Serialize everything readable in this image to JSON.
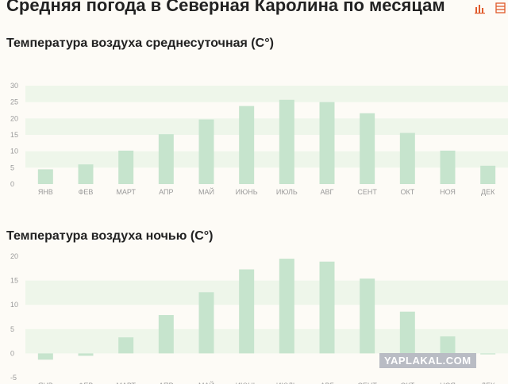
{
  "page": {
    "title": "Средняя погода в Северная Каролина по месяцам"
  },
  "toolbar": {
    "chart_icon": "bar-chart-icon",
    "menu_icon": "menu-icon"
  },
  "watermark": "YAPLAKAL.COM",
  "colors": {
    "bar": "#c6e4cd",
    "band": "#eef6ea",
    "background": "#fdfbf6",
    "accent": "#e05a2b"
  },
  "chart_data": [
    {
      "type": "bar",
      "title": "Температура воздуха среднесуточная (C°)",
      "categories": [
        "ЯНВ",
        "ФЕВ",
        "МАРТ",
        "АПР",
        "МАЙ",
        "ИЮНЬ",
        "ИЮЛЬ",
        "АВГ",
        "СЕНТ",
        "ОКТ",
        "НОЯ",
        "ДЕК"
      ],
      "values": [
        4.5,
        6,
        10.2,
        15.2,
        19.7,
        23.8,
        25.7,
        25,
        21.6,
        15.6,
        10.2,
        5.6
      ],
      "yticks": [
        0,
        5,
        10,
        15,
        20,
        25,
        30
      ],
      "ylim": [
        0,
        30
      ],
      "xlabel": "",
      "ylabel": "",
      "grid": "alternating-bands",
      "legend": "none"
    },
    {
      "type": "bar",
      "title": "Температура воздуха ночью (C°)",
      "categories": [
        "ЯНВ",
        "ФЕВ",
        "МАРТ",
        "АПР",
        "МАЙ",
        "ИЮНЬ",
        "ИЮЛЬ",
        "АВГ",
        "СЕНТ",
        "ОКТ",
        "НОЯ",
        "ДЕК"
      ],
      "values": [
        -1.3,
        -0.5,
        3.3,
        7.9,
        12.6,
        17.3,
        19.5,
        18.9,
        15.4,
        8.6,
        3.5,
        -0.2
      ],
      "yticks": [
        -5,
        0,
        5,
        10,
        15,
        20
      ],
      "ylim": [
        -5,
        20
      ],
      "xlabel": "",
      "ylabel": "",
      "grid": "alternating-bands",
      "legend": "none"
    }
  ]
}
